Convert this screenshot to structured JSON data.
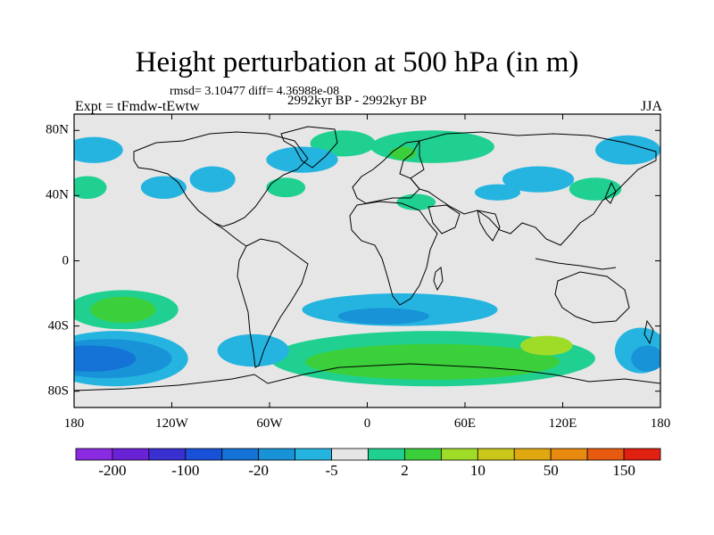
{
  "title": "Height perturbation at 500 hPa (in m)",
  "stats": "rmsd= 3.10477 diff= 4.36988e-08",
  "experiment": "Expt = tFmdw-tEwtw",
  "period": "2992kyr BP - 2992kyr BP",
  "season": "JJA",
  "map": {
    "background_color": "#e6e6e6",
    "lon_range": [
      -180,
      180
    ],
    "lat_range": [
      -90,
      90
    ],
    "y_ticks": [
      {
        "label": "80N",
        "lat": 80
      },
      {
        "label": "40N",
        "lat": 40
      },
      {
        "label": "0",
        "lat": 0
      },
      {
        "label": "40S",
        "lat": -40
      },
      {
        "label": "80S",
        "lat": -80
      }
    ],
    "x_ticks": [
      {
        "label": "180",
        "lon": -180
      },
      {
        "label": "120W",
        "lon": -120
      },
      {
        "label": "60W",
        "lon": -60
      },
      {
        "label": "0",
        "lon": 0
      },
      {
        "label": "60E",
        "lon": 60
      },
      {
        "label": "120E",
        "lon": 120
      },
      {
        "label": "180",
        "lon": 180
      }
    ]
  },
  "colorbar": {
    "colors": [
      "#8a2be2",
      "#6a22d6",
      "#3a2fd0",
      "#1850d8",
      "#1572d6",
      "#1893d8",
      "#25b4e0",
      "#e6e6e6",
      "#20d090",
      "#3ccf3c",
      "#9fdc28",
      "#c9c81a",
      "#e0a810",
      "#e88a10",
      "#e85a10",
      "#e02010"
    ],
    "labels": [
      {
        "text": "-200",
        "index": 1
      },
      {
        "text": "-100",
        "index": 3
      },
      {
        "text": "-20",
        "index": 5
      },
      {
        "text": "-5",
        "index": 7
      },
      {
        "text": "2",
        "index": 9
      },
      {
        "text": "10",
        "index": 11
      },
      {
        "text": "50",
        "index": 13
      },
      {
        "text": "150",
        "index": 15
      }
    ]
  },
  "anomaly_regions": [
    {
      "name": "north-atlantic-positive",
      "color": "#20d090",
      "lon": -15,
      "lat": 72,
      "rx": 20,
      "ry": 8
    },
    {
      "name": "scandinavia-positive",
      "color": "#20d090",
      "lon": 40,
      "lat": 70,
      "rx": 38,
      "ry": 10
    },
    {
      "name": "scandinavia-core",
      "color": "#3ccf3c",
      "lon": 22,
      "lat": 66,
      "rx": 8,
      "ry": 4
    },
    {
      "name": "north-pacific-negative",
      "color": "#25b4e0",
      "lon": -168,
      "lat": 68,
      "rx": 18,
      "ry": 8
    },
    {
      "name": "north-pacific-positive",
      "color": "#20d090",
      "lon": -172,
      "lat": 45,
      "rx": 12,
      "ry": 7
    },
    {
      "name": "north-america-negative-1",
      "color": "#25b4e0",
      "lon": -125,
      "lat": 45,
      "rx": 14,
      "ry": 7
    },
    {
      "name": "north-america-negative-2",
      "color": "#25b4e0",
      "lon": -95,
      "lat": 50,
      "rx": 14,
      "ry": 8
    },
    {
      "name": "north-atlantic-negative",
      "color": "#25b4e0",
      "lon": -40,
      "lat": 62,
      "rx": 22,
      "ry": 8
    },
    {
      "name": "east-atlantic-positive",
      "color": "#20d090",
      "lon": -50,
      "lat": 45,
      "rx": 12,
      "ry": 6
    },
    {
      "name": "mediterranean-positive",
      "color": "#20d090",
      "lon": 30,
      "lat": 36,
      "rx": 12,
      "ry": 5
    },
    {
      "name": "central-asia-negative",
      "color": "#25b4e0",
      "lon": 105,
      "lat": 50,
      "rx": 22,
      "ry": 8
    },
    {
      "name": "east-asia-negative",
      "color": "#25b4e0",
      "lon": 160,
      "lat": 68,
      "rx": 20,
      "ry": 9
    },
    {
      "name": "west-pacific-positive",
      "color": "#20d090",
      "lon": 140,
      "lat": 44,
      "rx": 16,
      "ry": 7
    },
    {
      "name": "central-asia-negative-2",
      "color": "#25b4e0",
      "lon": 80,
      "lat": 42,
      "rx": 14,
      "ry": 5
    },
    {
      "name": "south-pacific-positive",
      "color": "#20d090",
      "lon": -150,
      "lat": -30,
      "rx": 34,
      "ry": 12
    },
    {
      "name": "south-pacific-core",
      "color": "#3ccf3c",
      "lon": -150,
      "lat": -30,
      "rx": 20,
      "ry": 8
    },
    {
      "name": "south-pacific-negative",
      "color": "#25b4e0",
      "lon": -155,
      "lat": -60,
      "rx": 45,
      "ry": 17
    },
    {
      "name": "south-pacific-negative-core",
      "color": "#1893d8",
      "lon": -160,
      "lat": -60,
      "rx": 40,
      "ry": 12
    },
    {
      "name": "south-pacific-negative-inner",
      "color": "#1572d6",
      "lon": -170,
      "lat": -60,
      "rx": 28,
      "ry": 8
    },
    {
      "name": "south-atlantic-negative",
      "color": "#25b4e0",
      "lon": 20,
      "lat": -30,
      "rx": 60,
      "ry": 10
    },
    {
      "name": "south-atlantic-core",
      "color": "#1893d8",
      "lon": 10,
      "lat": -34,
      "rx": 28,
      "ry": 5
    },
    {
      "name": "southern-ocean-positive",
      "color": "#20d090",
      "lon": 40,
      "lat": -60,
      "rx": 100,
      "ry": 17
    },
    {
      "name": "southern-ocean-core",
      "color": "#3ccf3c",
      "lon": 40,
      "lat": -62,
      "rx": 78,
      "ry": 11
    },
    {
      "name": "southern-ocean-max",
      "color": "#9fdc28",
      "lon": 110,
      "lat": -52,
      "rx": 16,
      "ry": 6
    },
    {
      "name": "south-east-pacific-negative",
      "color": "#25b4e0",
      "lon": 168,
      "lat": -55,
      "rx": 16,
      "ry": 14
    },
    {
      "name": "south-east-pacific-core",
      "color": "#1893d8",
      "lon": 172,
      "lat": -60,
      "rx": 10,
      "ry": 8
    },
    {
      "name": "antarctic-peninsula-negative",
      "color": "#25b4e0",
      "lon": -70,
      "lat": -55,
      "rx": 22,
      "ry": 10
    }
  ]
}
